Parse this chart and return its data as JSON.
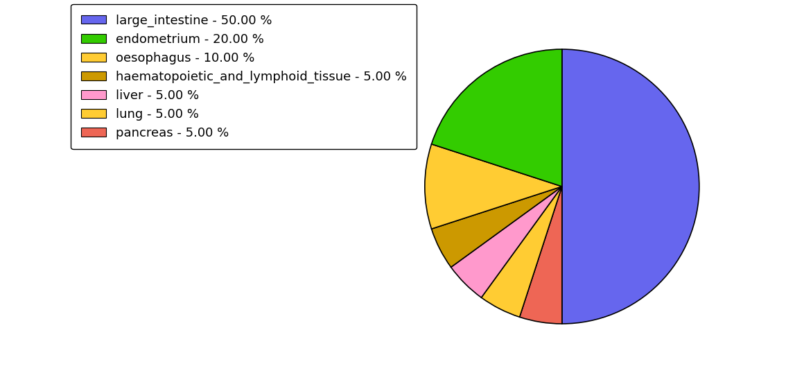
{
  "labels": [
    "large_intestine - 50.00 %",
    "endometrium - 20.00 %",
    "oesophagus - 10.00 %",
    "haematopoietic_and_lymphoid_tissue - 5.00 %",
    "liver - 5.00 %",
    "lung - 5.00 %",
    "pancreas - 5.00 %"
  ],
  "pie_values": [
    50,
    5,
    5,
    5,
    5,
    10,
    20
  ],
  "pie_colors": [
    "#6666ee",
    "#ee6655",
    "#ffcc33",
    "#ff99cc",
    "#cc9900",
    "#ffcc33",
    "#33cc00"
  ],
  "legend_colors": [
    "#6666ee",
    "#33cc00",
    "#ffcc33",
    "#cc9900",
    "#ff99cc",
    "#ffcc33",
    "#ee6655"
  ],
  "startangle": 90,
  "figsize": [
    11.34,
    5.38
  ],
  "dpi": 100,
  "background_color": "#ffffff",
  "legend_fontsize": 13
}
